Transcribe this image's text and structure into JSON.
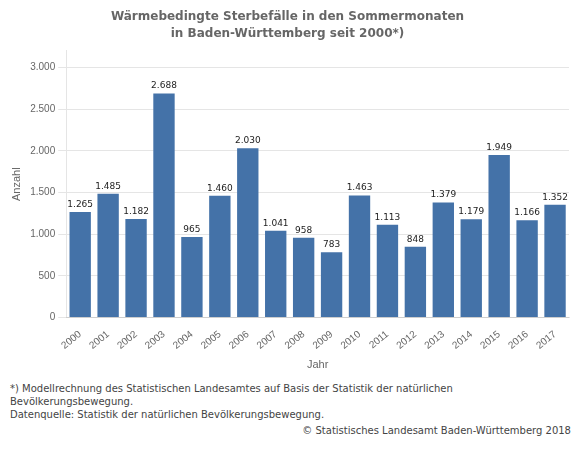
{
  "chart_data": {
    "type": "bar",
    "title": "Wärmebedingte Sterbefälle in den Sommermonaten",
    "subtitle": "in Baden-Württemberg seit 2000*)",
    "x_label": "Jahr",
    "y_label": "Anzahl",
    "categories": [
      "2000",
      "2001",
      "2002",
      "2003",
      "2004",
      "2005",
      "2006",
      "2007",
      "2008",
      "2009",
      "2010",
      "2011",
      "2012",
      "2013",
      "2014",
      "2015",
      "2016",
      "2017"
    ],
    "values": [
      1265,
      1485,
      1182,
      2688,
      965,
      1460,
      2030,
      1041,
      958,
      783,
      1463,
      1113,
      848,
      1379,
      1179,
      1949,
      1166,
      1352
    ],
    "value_labels": [
      "1.265",
      "1.485",
      "1.182",
      "2.688",
      "965",
      "1.460",
      "2.030",
      "1.041",
      "958",
      "783",
      "1.463",
      "1.113",
      "848",
      "1.379",
      "1.179",
      "1.949",
      "1.166",
      "1.352"
    ],
    "data_labels": true,
    "color": "#4472a8",
    "ylim": [
      0,
      3200
    ],
    "yticks": [
      0,
      500,
      {
        "value": 1000,
        "label": "1.000"
      },
      {
        "value": 1500,
        "label": "1.500"
      },
      {
        "value": 2000,
        "label": "2.000"
      },
      {
        "value": 2500,
        "label": "2.500"
      },
      {
        "value": 3000,
        "label": "3.000"
      }
    ],
    "grid": true,
    "annotations": [
      "*) Modellrechnung des Statistischen Landesamtes auf Basis der Statistik der natürlichen",
      "Bevölkerungsbewegung.",
      "Datenquelle: Statistik der natürlichen Bevölkerungsbewegung.",
      "© Statistisches Landesamt Baden-Württemberg 2018"
    ]
  }
}
